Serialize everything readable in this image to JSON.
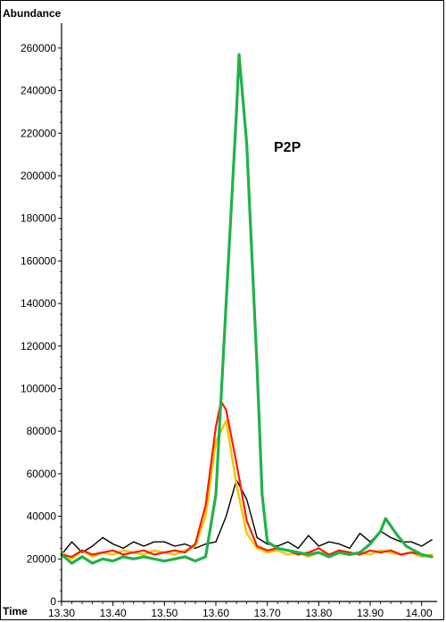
{
  "chart_data": {
    "type": "line",
    "ylabel": "Abundance",
    "xlabel": "Time",
    "annotation": "P2P",
    "xlim": [
      13.3,
      14.03
    ],
    "ylim": [
      0,
      270000
    ],
    "x_ticks": [
      "13.30",
      "13.40",
      "13.50",
      "13.60",
      "13.70",
      "13.80",
      "13.90",
      "14.00"
    ],
    "y_ticks": [
      "0",
      "20000",
      "40000",
      "60000",
      "80000",
      "100000",
      "120000",
      "140000",
      "160000",
      "180000",
      "200000",
      "220000",
      "240000",
      "260000"
    ],
    "grid": false,
    "legend": "none",
    "series": [
      {
        "color": "#000000",
        "width": 1.4,
        "points": [
          [
            13.3,
            22000
          ],
          [
            13.32,
            28000
          ],
          [
            13.34,
            23000
          ],
          [
            13.36,
            26000
          ],
          [
            13.38,
            30000
          ],
          [
            13.4,
            27000
          ],
          [
            13.42,
            25000
          ],
          [
            13.44,
            28000
          ],
          [
            13.46,
            26000
          ],
          [
            13.48,
            28000
          ],
          [
            13.5,
            28000
          ],
          [
            13.52,
            26000
          ],
          [
            13.54,
            27000
          ],
          [
            13.56,
            25000
          ],
          [
            13.58,
            27000
          ],
          [
            13.6,
            28000
          ],
          [
            13.61,
            34000
          ],
          [
            13.62,
            40000
          ],
          [
            13.64,
            57000
          ],
          [
            13.66,
            48000
          ],
          [
            13.68,
            30000
          ],
          [
            13.7,
            27000
          ],
          [
            13.72,
            26000
          ],
          [
            13.74,
            28000
          ],
          [
            13.76,
            25000
          ],
          [
            13.78,
            31000
          ],
          [
            13.8,
            26000
          ],
          [
            13.82,
            28000
          ],
          [
            13.84,
            27000
          ],
          [
            13.86,
            25000
          ],
          [
            13.88,
            32000
          ],
          [
            13.9,
            28000
          ],
          [
            13.92,
            33000
          ],
          [
            13.94,
            30000
          ],
          [
            13.96,
            28000
          ],
          [
            13.98,
            28000
          ],
          [
            14.0,
            26000
          ],
          [
            14.02,
            29000
          ]
        ]
      },
      {
        "color": "#f0c800",
        "width": 2.5,
        "points": [
          [
            13.3,
            23000
          ],
          [
            13.32,
            20000
          ],
          [
            13.34,
            24000
          ],
          [
            13.36,
            21000
          ],
          [
            13.38,
            23000
          ],
          [
            13.4,
            22000
          ],
          [
            13.42,
            24000
          ],
          [
            13.44,
            23000
          ],
          [
            13.46,
            22000
          ],
          [
            13.48,
            24000
          ],
          [
            13.5,
            23000
          ],
          [
            13.52,
            22000
          ],
          [
            13.54,
            24000
          ],
          [
            13.56,
            26000
          ],
          [
            13.58,
            40000
          ],
          [
            13.6,
            75000
          ],
          [
            13.62,
            85000
          ],
          [
            13.64,
            55000
          ],
          [
            13.66,
            32000
          ],
          [
            13.68,
            25000
          ],
          [
            13.7,
            23000
          ],
          [
            13.72,
            24000
          ],
          [
            13.74,
            22000
          ],
          [
            13.76,
            23000
          ],
          [
            13.78,
            21000
          ],
          [
            13.8,
            23000
          ],
          [
            13.82,
            22000
          ],
          [
            13.84,
            24000
          ],
          [
            13.86,
            22000
          ],
          [
            13.88,
            23000
          ],
          [
            13.9,
            22000
          ],
          [
            13.92,
            24000
          ],
          [
            13.94,
            23000
          ],
          [
            13.96,
            22000
          ],
          [
            13.98,
            23000
          ],
          [
            14.0,
            21000
          ],
          [
            14.02,
            22000
          ]
        ]
      },
      {
        "color": "#ff1a00",
        "width": 2.2,
        "points": [
          [
            13.3,
            22000
          ],
          [
            13.32,
            21000
          ],
          [
            13.34,
            24000
          ],
          [
            13.36,
            22000
          ],
          [
            13.38,
            23000
          ],
          [
            13.4,
            24000
          ],
          [
            13.42,
            22000
          ],
          [
            13.44,
            23000
          ],
          [
            13.46,
            24000
          ],
          [
            13.48,
            22000
          ],
          [
            13.5,
            23000
          ],
          [
            13.52,
            24000
          ],
          [
            13.54,
            23000
          ],
          [
            13.56,
            27000
          ],
          [
            13.58,
            45000
          ],
          [
            13.6,
            82000
          ],
          [
            13.61,
            94000
          ],
          [
            13.62,
            90000
          ],
          [
            13.64,
            65000
          ],
          [
            13.66,
            38000
          ],
          [
            13.68,
            26000
          ],
          [
            13.7,
            24000
          ],
          [
            13.72,
            25000
          ],
          [
            13.74,
            24000
          ],
          [
            13.76,
            22000
          ],
          [
            13.78,
            23000
          ],
          [
            13.8,
            25000
          ],
          [
            13.82,
            22000
          ],
          [
            13.84,
            24000
          ],
          [
            13.86,
            23000
          ],
          [
            13.88,
            22000
          ],
          [
            13.9,
            24000
          ],
          [
            13.92,
            23000
          ],
          [
            13.94,
            24000
          ],
          [
            13.96,
            22000
          ],
          [
            13.98,
            23000
          ],
          [
            14.0,
            22000
          ],
          [
            14.02,
            21000
          ]
        ]
      },
      {
        "color": "#22b14c",
        "width": 3.2,
        "points": [
          [
            13.3,
            22000
          ],
          [
            13.32,
            18000
          ],
          [
            13.34,
            21000
          ],
          [
            13.36,
            18000
          ],
          [
            13.38,
            20000
          ],
          [
            13.4,
            19000
          ],
          [
            13.42,
            21000
          ],
          [
            13.44,
            20000
          ],
          [
            13.46,
            21000
          ],
          [
            13.48,
            20000
          ],
          [
            13.5,
            19000
          ],
          [
            13.52,
            20000
          ],
          [
            13.54,
            21000
          ],
          [
            13.56,
            19000
          ],
          [
            13.58,
            21000
          ],
          [
            13.6,
            50000
          ],
          [
            13.62,
            140000
          ],
          [
            13.64,
            230000
          ],
          [
            13.645,
            257000
          ],
          [
            13.66,
            215000
          ],
          [
            13.68,
            110000
          ],
          [
            13.69,
            50000
          ],
          [
            13.7,
            28000
          ],
          [
            13.72,
            25000
          ],
          [
            13.74,
            24000
          ],
          [
            13.76,
            23000
          ],
          [
            13.78,
            22000
          ],
          [
            13.8,
            23000
          ],
          [
            13.82,
            21000
          ],
          [
            13.84,
            23000
          ],
          [
            13.86,
            22000
          ],
          [
            13.88,
            23000
          ],
          [
            13.9,
            27000
          ],
          [
            13.92,
            33000
          ],
          [
            13.93,
            39000
          ],
          [
            13.95,
            32000
          ],
          [
            13.97,
            26000
          ],
          [
            14.0,
            22000
          ],
          [
            14.02,
            21000
          ]
        ]
      }
    ]
  }
}
